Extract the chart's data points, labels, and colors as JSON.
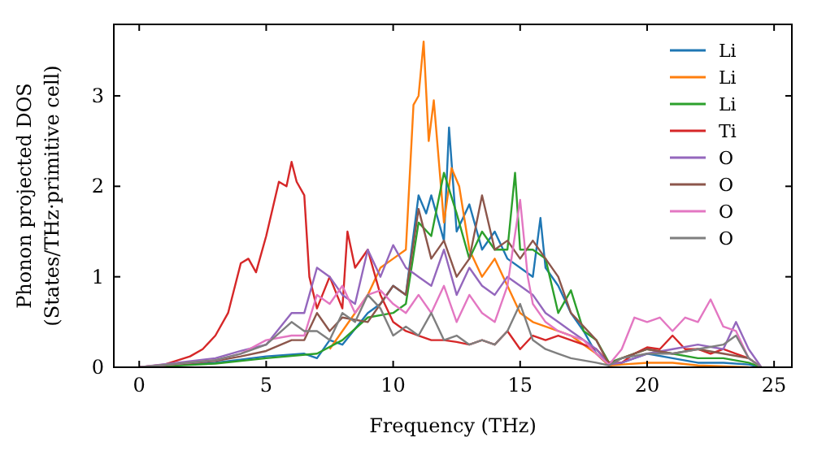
{
  "chart_data": {
    "type": "line",
    "xlabel": "Frequency (THz)",
    "ylabel": "Phonon projected DOS\n(States/THz·primitive cell)",
    "xlim": [
      -1,
      25.7
    ],
    "ylim": [
      0,
      3.79
    ],
    "xticks": [
      0,
      5,
      10,
      15,
      20,
      25
    ],
    "yticks": [
      0,
      1,
      2,
      3
    ],
    "grid": false,
    "legend": "top right",
    "series": [
      {
        "name": "Li",
        "color": "#1f77b4",
        "x": [
          0,
          3,
          5,
          6.5,
          7,
          7.5,
          8,
          9,
          9.5,
          10,
          10.5,
          11,
          11.3,
          11.5,
          12,
          12.2,
          12.5,
          13,
          13.5,
          14,
          14.5,
          15,
          15.5,
          15.8,
          16,
          16.5,
          17,
          17.5,
          18,
          18.5,
          19,
          20,
          21,
          22,
          23,
          24,
          24.5
        ],
        "values": [
          0,
          0.05,
          0.12,
          0.15,
          0.1,
          0.3,
          0.25,
          0.6,
          0.7,
          0.9,
          0.8,
          1.9,
          1.7,
          1.9,
          1.4,
          2.65,
          1.5,
          1.8,
          1.3,
          1.5,
          1.2,
          1.1,
          1.0,
          1.65,
          1.1,
          0.9,
          0.6,
          0.4,
          0.15,
          0.02,
          0.05,
          0.15,
          0.1,
          0.05,
          0.05,
          0.03,
          0
        ]
      },
      {
        "name": "Li",
        "color": "#ff7f0e",
        "x": [
          7.5,
          8,
          8.5,
          9,
          9.5,
          10,
          10.5,
          10.8,
          11,
          11.2,
          11.4,
          11.6,
          12,
          12.3,
          12.6,
          13,
          13.5,
          14,
          14.5,
          15,
          15.5,
          16,
          16.5,
          17,
          17.5,
          18,
          18.5,
          19,
          20,
          21,
          22,
          24
        ],
        "values": [
          0.2,
          0.4,
          0.6,
          0.8,
          1.1,
          1.2,
          1.3,
          2.9,
          3.0,
          3.6,
          2.5,
          2.95,
          1.6,
          2.2,
          2.0,
          1.3,
          1.0,
          1.2,
          0.9,
          0.6,
          0.5,
          0.45,
          0.4,
          0.35,
          0.25,
          0.15,
          0.02,
          0.03,
          0.05,
          0.05,
          0.02,
          0
        ]
      },
      {
        "name": "Li",
        "color": "#2ca02c",
        "x": [
          0,
          3,
          5,
          7,
          8,
          9,
          10,
          10.5,
          11,
          11.5,
          12,
          12.5,
          13,
          13.5,
          14,
          14.5,
          14.8,
          15,
          15.5,
          16,
          16.5,
          17,
          17.5,
          18,
          18.5,
          19,
          20,
          21,
          22,
          23,
          24,
          24.5
        ],
        "values": [
          0,
          0.04,
          0.1,
          0.15,
          0.3,
          0.55,
          0.6,
          0.7,
          1.6,
          1.45,
          2.15,
          1.7,
          1.2,
          1.5,
          1.3,
          1.3,
          2.15,
          1.3,
          1.3,
          1.2,
          0.6,
          0.85,
          0.4,
          0.3,
          0.05,
          0.1,
          0.2,
          0.15,
          0.1,
          0.1,
          0.05,
          0
        ]
      },
      {
        "name": "Ti",
        "color": "#d62728",
        "x": [
          0,
          1,
          2,
          2.5,
          3,
          3.5,
          4,
          4.3,
          4.6,
          5,
          5.5,
          5.8,
          6,
          6.2,
          6.5,
          6.7,
          7,
          7.5,
          8,
          8.2,
          8.5,
          9,
          9.5,
          10,
          10.5,
          11,
          11.5,
          12,
          12.5,
          13,
          13.5,
          14,
          14.5,
          15,
          15.5,
          16,
          16.5,
          17,
          17.5,
          18,
          18.5,
          19,
          19.5,
          20,
          20.5,
          21,
          21.5,
          22,
          22.5,
          23,
          23.5,
          24,
          24.5
        ],
        "values": [
          0,
          0.03,
          0.12,
          0.2,
          0.35,
          0.6,
          1.15,
          1.2,
          1.05,
          1.45,
          2.05,
          2.0,
          2.27,
          2.05,
          1.9,
          1.0,
          0.65,
          1.0,
          0.65,
          1.5,
          1.1,
          1.3,
          0.8,
          0.5,
          0.4,
          0.35,
          0.3,
          0.3,
          0.28,
          0.25,
          0.3,
          0.25,
          0.4,
          0.2,
          0.35,
          0.3,
          0.35,
          0.3,
          0.25,
          0.2,
          0.05,
          0.05,
          0.15,
          0.22,
          0.2,
          0.35,
          0.2,
          0.2,
          0.15,
          0.2,
          0.15,
          0.1,
          0
        ]
      },
      {
        "name": "O",
        "color": "#9467bd",
        "x": [
          0,
          3,
          4,
          5,
          6,
          6.5,
          7,
          7.5,
          8,
          8.5,
          9,
          9.5,
          10,
          10.5,
          11,
          11.5,
          12,
          12.5,
          13,
          13.5,
          14,
          14.5,
          15,
          15.5,
          16,
          16.5,
          17,
          17.5,
          18,
          18.5,
          19,
          20,
          21,
          22,
          23,
          23.5,
          24,
          24.5
        ],
        "values": [
          0,
          0.1,
          0.18,
          0.25,
          0.6,
          0.6,
          1.1,
          1.0,
          0.8,
          0.7,
          1.3,
          1.0,
          1.35,
          1.1,
          1.0,
          0.9,
          1.3,
          0.8,
          1.1,
          0.9,
          0.8,
          1.0,
          0.9,
          0.8,
          0.6,
          0.5,
          0.4,
          0.3,
          0.2,
          0.03,
          0.05,
          0.15,
          0.2,
          0.25,
          0.2,
          0.5,
          0.2,
          0
        ]
      },
      {
        "name": "O",
        "color": "#8c564b",
        "x": [
          0,
          3,
          4,
          5,
          6,
          6.5,
          7,
          7.5,
          8,
          9,
          9.5,
          10,
          10.5,
          11,
          11.5,
          12,
          12.5,
          13,
          13.5,
          14,
          14.5,
          15,
          15.5,
          16,
          16.5,
          17,
          17.5,
          18,
          18.5,
          19,
          20,
          21,
          22,
          23,
          24,
          24.5
        ],
        "values": [
          0,
          0.07,
          0.12,
          0.18,
          0.3,
          0.3,
          0.6,
          0.4,
          0.55,
          0.5,
          0.7,
          0.9,
          0.8,
          1.75,
          1.2,
          1.4,
          1.0,
          1.2,
          1.9,
          1.3,
          1.4,
          1.2,
          1.4,
          1.2,
          1.0,
          0.6,
          0.45,
          0.3,
          0.03,
          0.1,
          0.2,
          0.15,
          0.2,
          0.15,
          0.1,
          0
        ]
      },
      {
        "name": "O",
        "color": "#e377c2",
        "x": [
          0,
          3,
          4,
          5,
          6,
          6.5,
          7,
          7.5,
          8,
          8.5,
          9,
          9.5,
          10,
          10.5,
          11,
          11.5,
          12,
          12.5,
          13,
          13.5,
          14,
          14.5,
          15,
          15.3,
          15.5,
          16,
          16.5,
          17,
          17.5,
          18,
          18.5,
          19,
          19.5,
          20,
          20.5,
          21,
          21.5,
          22,
          22.5,
          23,
          23.5,
          24,
          24.5
        ],
        "values": [
          0,
          0.08,
          0.15,
          0.3,
          0.35,
          0.35,
          0.8,
          0.7,
          0.9,
          0.6,
          0.8,
          0.85,
          0.7,
          0.6,
          0.8,
          0.6,
          0.9,
          0.5,
          0.8,
          0.6,
          0.5,
          0.9,
          1.85,
          1.0,
          0.7,
          0.5,
          0.4,
          0.35,
          0.3,
          0.15,
          0.03,
          0.2,
          0.55,
          0.5,
          0.55,
          0.4,
          0.55,
          0.5,
          0.75,
          0.45,
          0.4,
          0.1,
          0
        ]
      },
      {
        "name": "O",
        "color": "#7f7f7f",
        "x": [
          0,
          3,
          4,
          5,
          6,
          6.5,
          7,
          7.5,
          8,
          8.5,
          9,
          9.5,
          10,
          10.5,
          11,
          11.5,
          12,
          12.5,
          13,
          13.5,
          14,
          14.5,
          15,
          15.5,
          16,
          16.5,
          17,
          18,
          18.5,
          19,
          20,
          21,
          22,
          23,
          23.5,
          24,
          24.5
        ],
        "values": [
          0,
          0.08,
          0.15,
          0.25,
          0.5,
          0.4,
          0.4,
          0.3,
          0.6,
          0.5,
          0.8,
          0.65,
          0.35,
          0.45,
          0.35,
          0.6,
          0.3,
          0.35,
          0.25,
          0.3,
          0.25,
          0.4,
          0.7,
          0.3,
          0.2,
          0.15,
          0.1,
          0.05,
          0.02,
          0.1,
          0.15,
          0.15,
          0.2,
          0.25,
          0.35,
          0.1,
          0
        ]
      }
    ]
  }
}
